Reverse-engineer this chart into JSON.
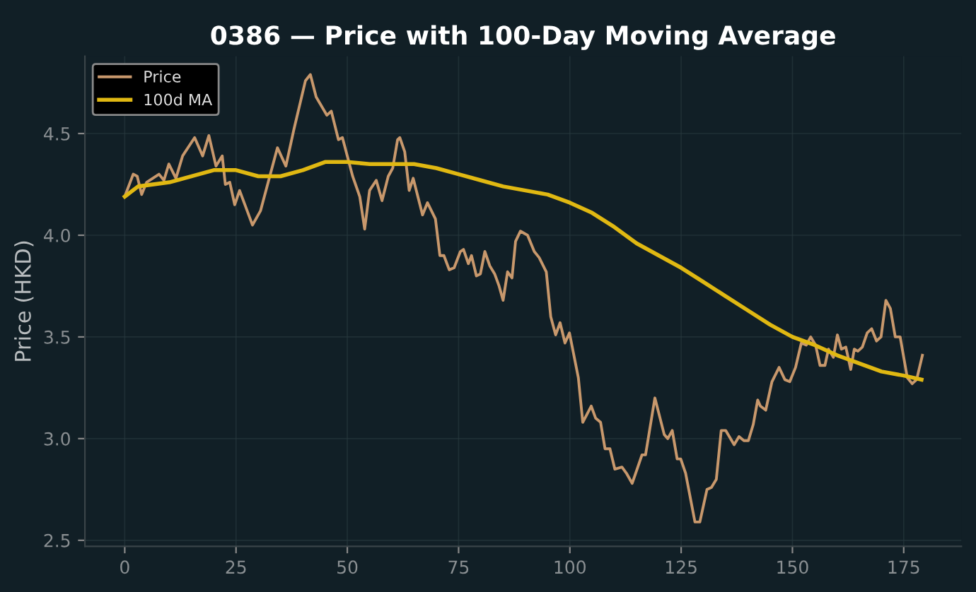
{
  "chart_data": {
    "type": "line",
    "title": "0386 — Price with 100-Day Moving Average",
    "ylabel": "Price (HKD)",
    "xlim": [
      -8.95,
      187.95
    ],
    "ylim": [
      2.47,
      4.88
    ],
    "xticks": [
      0,
      25,
      50,
      75,
      100,
      125,
      150,
      175
    ],
    "yticks": [
      2.5,
      {
        "value": 3,
        "label": "3.0"
      },
      3.5,
      {
        "value": 4,
        "label": "4.0"
      },
      4.5
    ],
    "grid": true,
    "legend": "top left",
    "line_style": "solid",
    "marker": "none",
    "series": [
      {
        "name": "Price",
        "color": "#c8986c",
        "x": [
          0,
          1.9,
          2.8,
          3.8,
          4.9,
          7.7,
          8.8,
          9.9,
          11.5,
          13,
          15.7,
          17.5,
          18.9,
          20.5,
          21.9,
          22.6,
          23.6,
          24.7,
          25.8,
          28.7,
          30.5,
          34.3,
          36.2,
          38,
          40.6,
          41.7,
          43,
          45.4,
          46.4,
          48,
          48.9,
          51.2,
          52.8,
          53.9,
          55,
          56.5,
          57.8,
          59.2,
          60.2,
          61.3,
          61.8,
          62.9,
          63.9,
          64.8,
          66.9,
          68,
          69.8,
          70.8,
          71.7,
          72.9,
          74,
          75.4,
          76.1,
          77.2,
          77.9,
          79,
          79.9,
          80.9,
          82,
          83.1,
          84.1,
          85,
          86,
          87,
          87.8,
          88.9,
          90.5,
          92,
          93.1,
          94.7,
          95.7,
          96.8,
          97.8,
          98.9,
          99.9,
          101.9,
          102.9,
          104.8,
          105.8,
          106.9,
          107.9,
          109,
          110.1,
          111.7,
          112.7,
          114,
          115.1,
          116.2,
          117,
          119.1,
          121.2,
          122,
          123,
          124.1,
          124.9,
          126,
          128.1,
          129.2,
          130.8,
          131.8,
          132.9,
          134,
          135,
          136.9,
          138,
          139.1,
          140.1,
          141.2,
          142.2,
          142.8,
          144,
          145.4,
          147,
          148.3,
          149.4,
          150.7,
          152,
          153.1,
          154.1,
          155.2,
          156.2,
          157.3,
          158.1,
          159.2,
          160.1,
          161,
          162,
          163.1,
          163.9,
          164.7,
          165.7,
          166.8,
          167.8,
          168.9,
          169.9,
          171,
          172,
          173.1,
          174.2,
          175.8,
          176.9,
          177.9,
          179.2
        ],
        "values": [
          4.19,
          4.3,
          4.29,
          4.2,
          4.26,
          4.3,
          4.27,
          4.35,
          4.28,
          4.39,
          4.48,
          4.39,
          4.49,
          4.34,
          4.39,
          4.25,
          4.26,
          4.15,
          4.22,
          4.05,
          4.12,
          4.43,
          4.34,
          4.52,
          4.76,
          4.79,
          4.68,
          4.59,
          4.61,
          4.47,
          4.48,
          4.29,
          4.19,
          4.03,
          4.22,
          4.27,
          4.17,
          4.29,
          4.33,
          4.47,
          4.48,
          4.41,
          4.22,
          4.28,
          4.1,
          4.16,
          4.08,
          3.9,
          3.9,
          3.83,
          3.84,
          3.92,
          3.93,
          3.86,
          3.9,
          3.8,
          3.81,
          3.92,
          3.85,
          3.81,
          3.75,
          3.68,
          3.82,
          3.79,
          3.97,
          4.02,
          4.0,
          3.92,
          3.89,
          3.82,
          3.6,
          3.51,
          3.57,
          3.47,
          3.52,
          3.3,
          3.08,
          3.16,
          3.1,
          3.08,
          2.95,
          2.95,
          2.85,
          2.86,
          2.83,
          2.78,
          2.85,
          2.92,
          2.92,
          3.2,
          3.02,
          3.0,
          3.04,
          2.9,
          2.9,
          2.83,
          2.59,
          2.59,
          2.75,
          2.76,
          2.8,
          3.04,
          3.04,
          2.97,
          3.01,
          2.99,
          2.99,
          3.07,
          3.19,
          3.16,
          3.14,
          3.28,
          3.35,
          3.29,
          3.28,
          3.35,
          3.47,
          3.46,
          3.5,
          3.46,
          3.36,
          3.36,
          3.44,
          3.4,
          3.51,
          3.44,
          3.45,
          3.34,
          3.44,
          3.43,
          3.45,
          3.52,
          3.54,
          3.48,
          3.5,
          3.68,
          3.64,
          3.5,
          3.5,
          3.3,
          3.27,
          3.29,
          3.41
        ]
      },
      {
        "name": "100d MA",
        "color": "#e0b812",
        "x": [
          0,
          3,
          10,
          20,
          25,
          30,
          35,
          40,
          45,
          50,
          55,
          60,
          65,
          70,
          75,
          80,
          85,
          90,
          95,
          100,
          105,
          110,
          115,
          120,
          125,
          130,
          135,
          140,
          145,
          150,
          155,
          160,
          165,
          170,
          175,
          179
        ],
        "values": [
          4.19,
          4.24,
          4.26,
          4.32,
          4.32,
          4.29,
          4.29,
          4.32,
          4.36,
          4.36,
          4.35,
          4.35,
          4.35,
          4.33,
          4.3,
          4.27,
          4.24,
          4.22,
          4.2,
          4.16,
          4.11,
          4.04,
          3.96,
          3.9,
          3.84,
          3.77,
          3.7,
          3.63,
          3.56,
          3.5,
          3.46,
          3.41,
          3.37,
          3.33,
          3.31,
          3.29
        ]
      }
    ]
  }
}
